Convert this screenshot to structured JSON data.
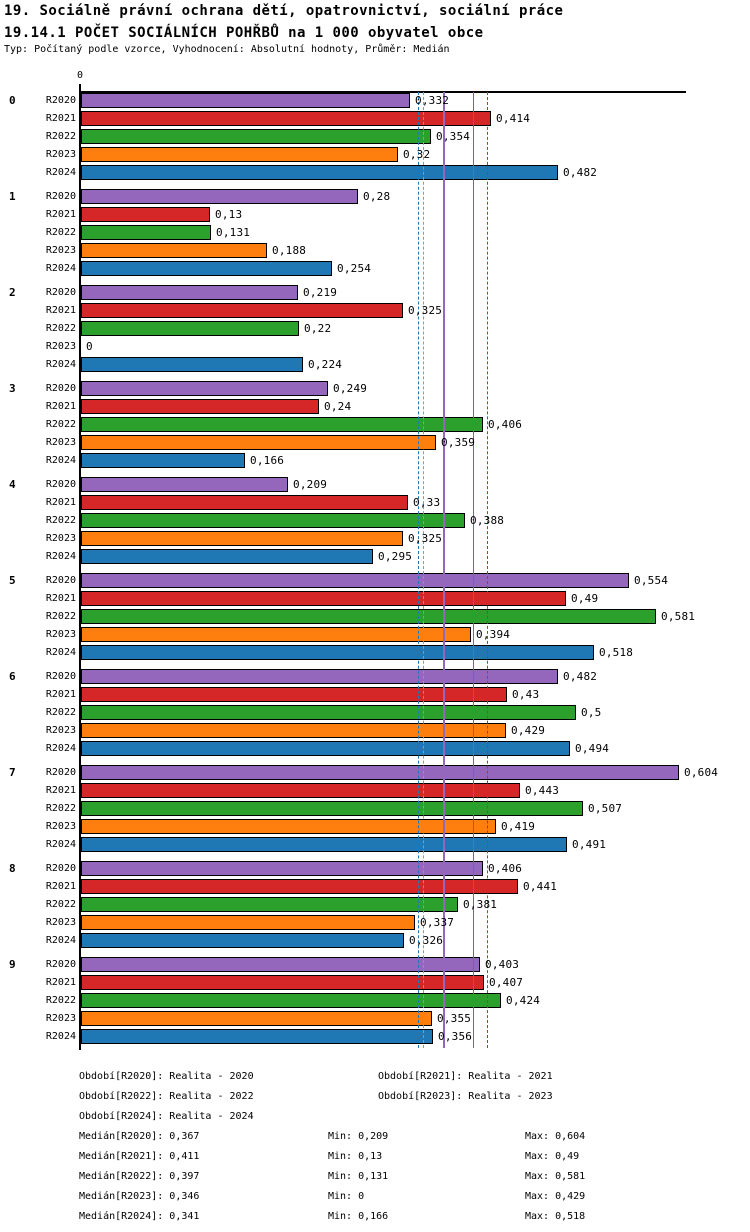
{
  "header": {
    "title_line1": "19. Sociálně právní ochrana dětí, opatrovnictví, sociální práce",
    "title_line2": "19.14.1 POČET SOCIÁLNÍCH POHŘBŮ na 1 000 obyvatel obce",
    "meta": "Typ: Počítaný podle vzorce, Vyhodnocení: Absolutní hodnoty, Průměr: Medián"
  },
  "chart_data": {
    "type": "bar",
    "orientation": "horizontal",
    "title": "19.14.1 POČET SOCIÁLNÍCH POHŘBŮ na 1 000 obyvatel obce",
    "axis_zero_label": "0",
    "xlim": [
      0,
      0.612
    ],
    "grid": false,
    "categories": [
      "0",
      "1",
      "2",
      "3",
      "4",
      "5",
      "6",
      "7",
      "8",
      "9"
    ],
    "series": [
      {
        "name": "R2020",
        "label": "Realita - 2020",
        "color": "#9467bd",
        "values": [
          0.332,
          0.28,
          0.219,
          0.249,
          0.209,
          0.554,
          0.482,
          0.604,
          0.406,
          0.403
        ],
        "median": 0.367,
        "min": 0.209,
        "max": 0.604
      },
      {
        "name": "R2021",
        "label": "Realita - 2021",
        "color": "#d62728",
        "values": [
          0.414,
          0.13,
          0.325,
          0.24,
          0.33,
          0.49,
          0.43,
          0.443,
          0.441,
          0.407
        ],
        "median": 0.411,
        "min": 0.13,
        "max": 0.49
      },
      {
        "name": "R2022",
        "label": "Realita - 2022",
        "color": "#2ca02c",
        "values": [
          0.354,
          0.131,
          0.22,
          0.406,
          0.388,
          0.581,
          0.5,
          0.507,
          0.381,
          0.424
        ],
        "median": 0.397,
        "min": 0.131,
        "max": 0.581
      },
      {
        "name": "R2023",
        "label": "Realita - 2023",
        "color": "#ff7f0e",
        "values": [
          0.32,
          0.188,
          0,
          0.359,
          0.325,
          0.394,
          0.429,
          0.419,
          0.337,
          0.355
        ],
        "median": 0.346,
        "min": 0,
        "max": 0.429
      },
      {
        "name": "R2024",
        "label": "Realita - 2024",
        "color": "#1f77b4",
        "values": [
          0.482,
          0.254,
          0.224,
          0.166,
          0.295,
          0.518,
          0.494,
          0.491,
          0.326,
          0.356
        ],
        "median": 0.341,
        "min": 0.166,
        "max": 0.518
      }
    ]
  },
  "legend": {
    "period_rows": [
      {
        "left": "Období[R2020]: Realita - 2020",
        "right": "Období[R2021]: Realita - 2021"
      },
      {
        "left": "Období[R2022]: Realita - 2022",
        "right": "Období[R2023]: Realita - 2023"
      },
      {
        "left": "Období[R2024]: Realita - 2024",
        "right": ""
      }
    ],
    "stat_rows": [
      {
        "median": "Medián[R2020]: 0,367",
        "min": "Min: 0,209",
        "max": "Max: 0,604"
      },
      {
        "median": "Medián[R2021]: 0,411",
        "min": "Min: 0,13",
        "max": "Max: 0,49"
      },
      {
        "median": "Medián[R2022]: 0,397",
        "min": "Min: 0,131",
        "max": "Max: 0,581"
      },
      {
        "median": "Medián[R2023]: 0,346",
        "min": "Min: 0",
        "max": "Max: 0,429"
      },
      {
        "median": "Medián[R2024]: 0,341",
        "min": "Min: 0,166",
        "max": "Max: 0,518"
      }
    ]
  }
}
